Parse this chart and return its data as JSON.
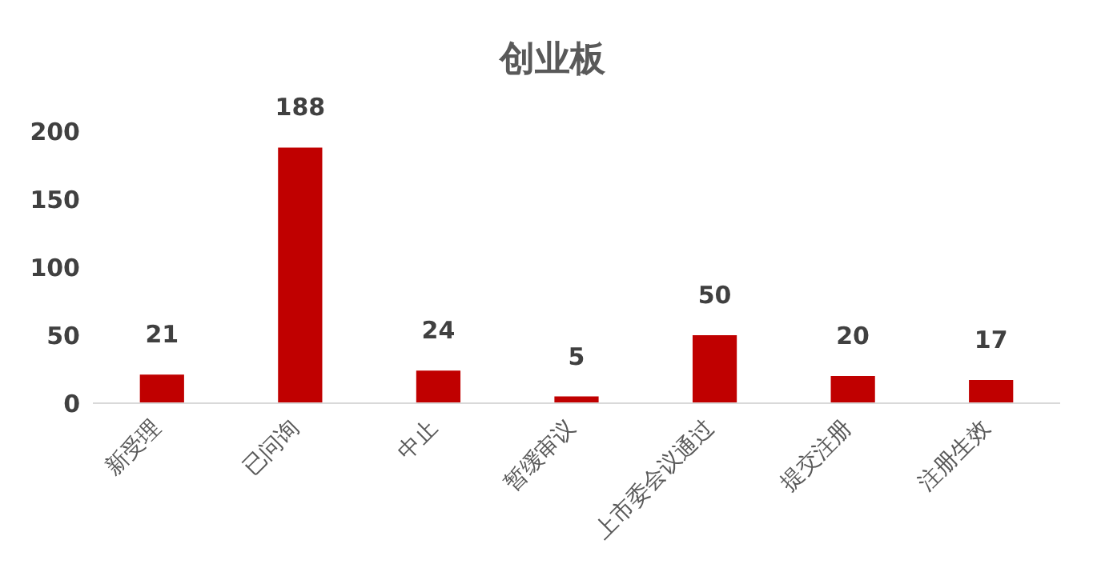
{
  "chart_data": {
    "type": "bar",
    "title": "创业板",
    "categories": [
      "新受理",
      "已问询",
      "中止",
      "暂缓审议",
      "上市委会议通过",
      "提交注册",
      "注册生效"
    ],
    "values": [
      21,
      188,
      24,
      5,
      50,
      20,
      17
    ],
    "color": "#c00000",
    "ylim": [
      0,
      200
    ],
    "yticks": [
      0,
      50,
      100,
      150,
      200
    ],
    "grid": false,
    "legend": false,
    "data_labels": true
  }
}
